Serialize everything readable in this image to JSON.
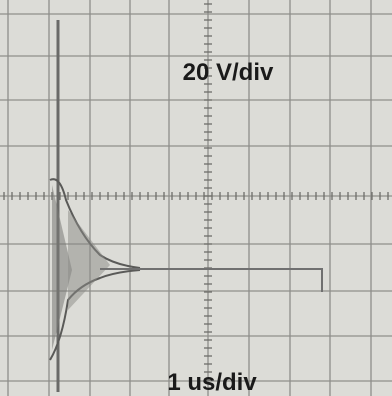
{
  "labels": {
    "vertical_scale": "20 V/div",
    "horizontal_scale": "1 us/div"
  }
}
